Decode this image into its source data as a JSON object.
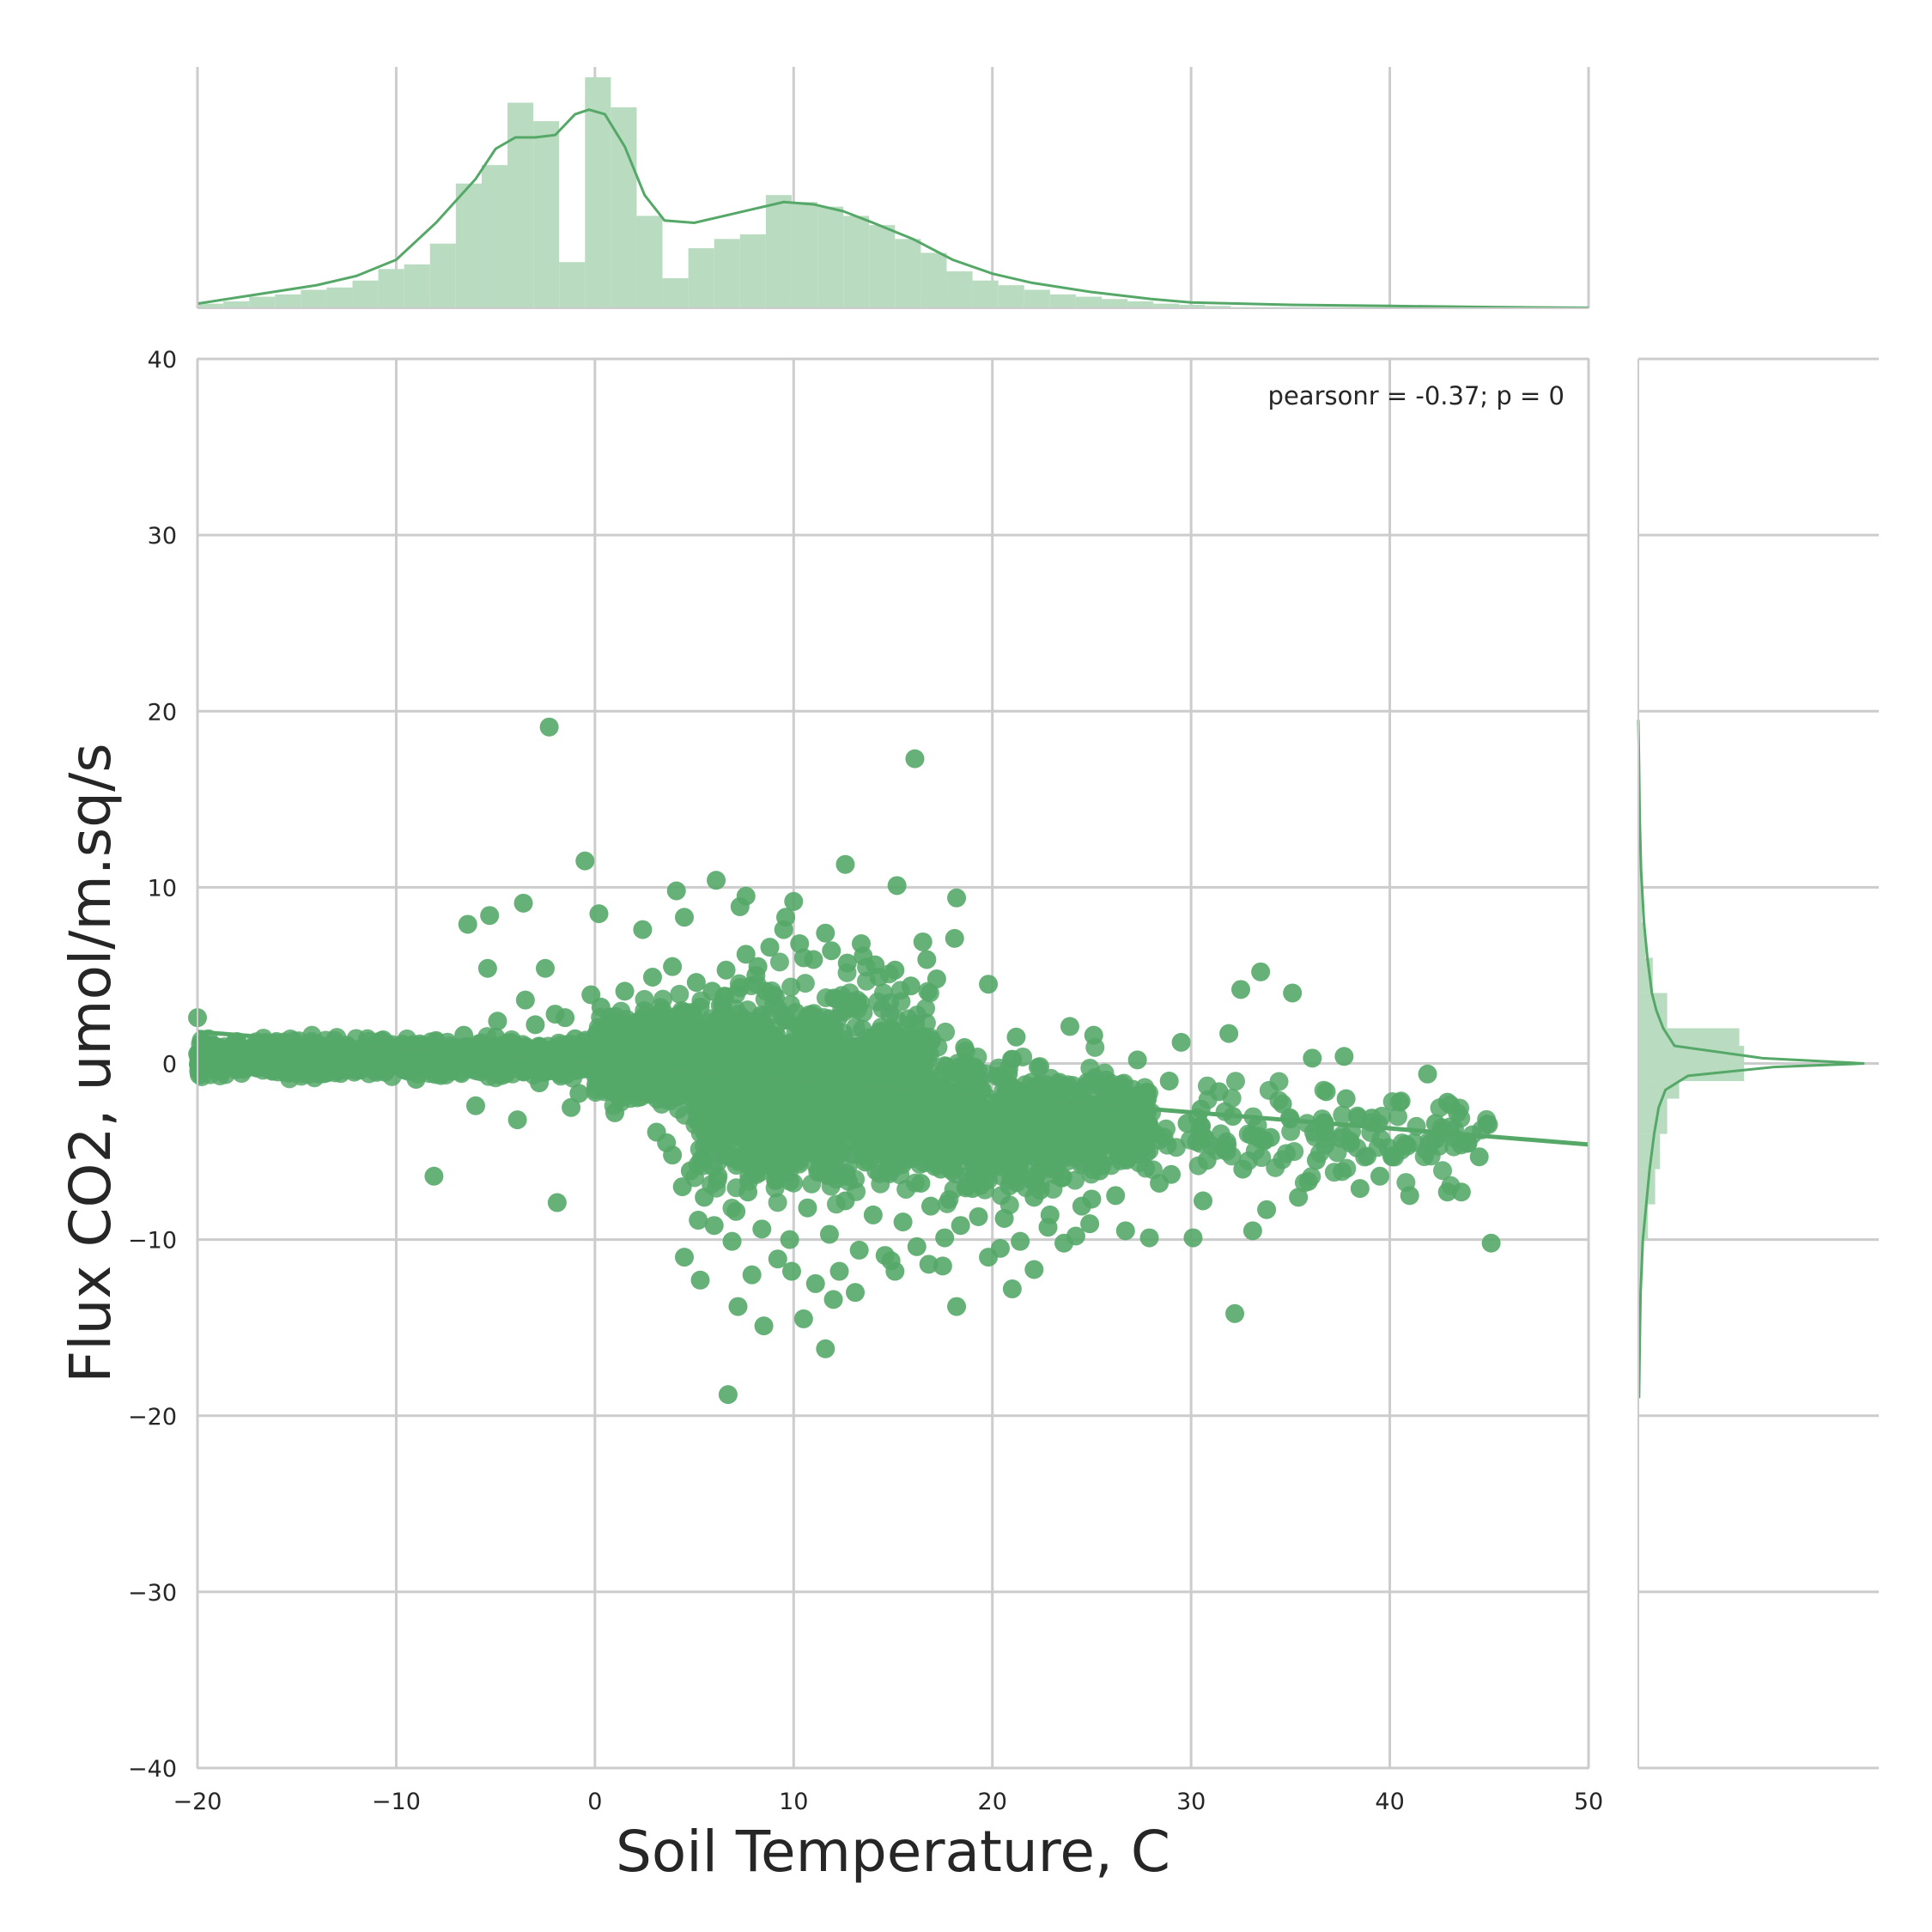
{
  "chart_data": {
    "type": "scatter",
    "kind": "joint-plot",
    "xlabel": "Soil Temperature, C",
    "ylabel": "Flux CO2, umol/m.sq/s",
    "annotation": "pearsonr = -0.37; p = 0",
    "xlim": [
      -20,
      50
    ],
    "ylim": [
      -40,
      40
    ],
    "x_ticks": [
      -20,
      -10,
      0,
      10,
      20,
      30,
      40,
      50
    ],
    "y_ticks": [
      -40,
      -30,
      -20,
      -10,
      0,
      10,
      20,
      30,
      40
    ],
    "x_tick_labels": [
      "−20",
      "−10",
      "0",
      "10",
      "20",
      "30",
      "40",
      "50"
    ],
    "y_tick_labels": [
      "−40",
      "−30",
      "−20",
      "−10",
      "0",
      "10",
      "20",
      "30",
      "40"
    ],
    "grid": true,
    "color": "#55a868",
    "hist_color": "#b9dcc1",
    "regression_line": {
      "x": [
        -20,
        50
      ],
      "y": [
        1.8,
        -4.6
      ]
    },
    "points": [
      [
        -2.3,
        19.1
      ],
      [
        16.1,
        17.3
      ],
      [
        -0.5,
        11.5
      ],
      [
        12.6,
        11.3
      ],
      [
        6.1,
        10.4
      ],
      [
        15.2,
        10.1
      ],
      [
        4.1,
        9.8
      ],
      [
        18.2,
        9.4
      ],
      [
        7.6,
        9.5
      ],
      [
        10.0,
        9.2
      ],
      [
        -3.6,
        9.1
      ],
      [
        7.3,
        8.9
      ],
      [
        -5.3,
        8.4
      ],
      [
        0.2,
        8.5
      ],
      [
        -6.4,
        7.9
      ],
      [
        4.5,
        8.3
      ],
      [
        9.6,
        8.3
      ],
      [
        11.6,
        7.4
      ],
      [
        2.4,
        7.6
      ],
      [
        13.4,
        6.8
      ],
      [
        16.5,
        6.9
      ],
      [
        18.1,
        7.1
      ],
      [
        7.6,
        6.2
      ],
      [
        3.9,
        5.5
      ],
      [
        -5.4,
        5.4
      ],
      [
        -2.5,
        5.4
      ],
      [
        19.8,
        4.5
      ],
      [
        33.5,
        5.2
      ],
      [
        32.5,
        4.2
      ],
      [
        35.1,
        4.0
      ],
      [
        -20.0,
        2.6
      ],
      [
        31.9,
        1.7
      ],
      [
        29.5,
        1.2
      ],
      [
        37.7,
        0.4
      ],
      [
        36.1,
        0.3
      ],
      [
        41.9,
        -0.6
      ],
      [
        -8.1,
        -6.4
      ],
      [
        -1.9,
        -7.9
      ],
      [
        4.5,
        -11.0
      ],
      [
        5.3,
        -12.3
      ],
      [
        7.9,
        -12.0
      ],
      [
        7.2,
        -13.8
      ],
      [
        8.5,
        -14.9
      ],
      [
        10.5,
        -14.5
      ],
      [
        11.6,
        -16.2
      ],
      [
        12.0,
        -13.4
      ],
      [
        6.7,
        -18.8
      ],
      [
        18.2,
        -13.8
      ],
      [
        21.0,
        -12.8
      ],
      [
        22.1,
        -11.7
      ],
      [
        32.2,
        -14.2
      ],
      [
        30.1,
        -9.9
      ],
      [
        33.1,
        -9.5
      ],
      [
        35.4,
        -7.6
      ],
      [
        38.5,
        -7.1
      ],
      [
        41.0,
        -7.5
      ],
      [
        42.9,
        -7.3
      ],
      [
        43.6,
        -7.3
      ],
      [
        44.5,
        -5.3
      ],
      [
        45.1,
        -10.2
      ],
      [
        40.8,
        -4.6
      ],
      [
        42.3,
        -3.4
      ],
      [
        43.4,
        -2.8
      ],
      [
        42.9,
        -2.2
      ],
      [
        39.5,
        -6.4
      ],
      [
        26.7,
        -9.5
      ],
      [
        27.9,
        -9.9
      ],
      [
        24.9,
        -9.1
      ],
      [
        23.6,
        -10.2
      ],
      [
        16.8,
        -11.4
      ],
      [
        15.1,
        -11.8
      ],
      [
        13.1,
        -13.0
      ],
      [
        9.2,
        -11.1
      ],
      [
        6.0,
        -9.2
      ],
      [
        3.9,
        -5.2
      ],
      [
        -1.2,
        -2.5
      ],
      [
        -3.9,
        -3.2
      ],
      [
        -6.0,
        -2.4
      ],
      [
        -9.0,
        -0.9
      ],
      [
        -12.0,
        -0.4
      ],
      [
        -16.0,
        -0.1
      ],
      [
        -18.0,
        0.2
      ],
      [
        -14.0,
        0.4
      ],
      [
        -10.0,
        0.6
      ],
      [
        -7.0,
        0.9
      ],
      [
        -5.0,
        1.5
      ],
      [
        -3.0,
        2.2
      ],
      [
        -1.5,
        2.6
      ],
      [
        0.3,
        3.2
      ],
      [
        1.5,
        4.1
      ],
      [
        2.9,
        4.9
      ],
      [
        5.1,
        4.6
      ],
      [
        8.2,
        5.5
      ],
      [
        10.5,
        6.0
      ],
      [
        14.1,
        5.6
      ],
      [
        17.2,
        4.8
      ],
      [
        21.2,
        1.5
      ],
      [
        23.9,
        2.1
      ],
      [
        25.1,
        1.6
      ],
      [
        27.3,
        0.2
      ],
      [
        28.9,
        -1.0
      ],
      [
        30.5,
        -2.6
      ],
      [
        32.1,
        -3.0
      ],
      [
        34.0,
        -4.2
      ],
      [
        36.3,
        -5.5
      ],
      [
        37.8,
        -2.0
      ],
      [
        39.1,
        -3.1
      ],
      [
        40.5,
        -2.2
      ],
      [
        26.2,
        -7.5
      ],
      [
        28.4,
        -6.8
      ],
      [
        30.8,
        -5.5
      ],
      [
        24.5,
        -8.1
      ],
      [
        22.8,
        -9.3
      ],
      [
        20.4,
        -10.5
      ],
      [
        19.3,
        -8.7
      ],
      [
        17.6,
        -9.9
      ],
      [
        14.6,
        -10.9
      ],
      [
        12.3,
        -11.8
      ],
      [
        9.8,
        -10.0
      ],
      [
        7.1,
        -8.4
      ],
      [
        5.5,
        -7.6
      ],
      [
        4.8,
        -6.1
      ],
      [
        3.1,
        -3.9
      ],
      [
        1.0,
        -2.8
      ],
      [
        -0.8,
        -1.7
      ],
      [
        -2.8,
        -1.1
      ],
      [
        -4.5,
        -0.6
      ],
      [
        -7.5,
        -0.3
      ],
      [
        -11.2,
        -0.2
      ],
      [
        -13.8,
        0.0
      ],
      [
        -17.3,
        -0.2
      ],
      [
        -19.5,
        0.4
      ],
      [
        -19.0,
        -0.3
      ],
      [
        -18.6,
        0.1
      ],
      [
        -17.7,
        0.5
      ],
      [
        -16.8,
        0.3
      ],
      [
        -15.5,
        0.2
      ],
      [
        -14.6,
        0.1
      ],
      [
        -13.2,
        0.6
      ],
      [
        -12.5,
        0.9
      ],
      [
        -11.6,
        0.2
      ],
      [
        -10.8,
        0.8
      ],
      [
        -9.7,
        1.1
      ],
      [
        -8.6,
        0.5
      ],
      [
        -8.0,
        1.3
      ],
      [
        -7.2,
        0.2
      ],
      [
        -6.6,
        1.6
      ],
      [
        -5.8,
        0.8
      ],
      [
        -4.9,
        2.4
      ],
      [
        -4.2,
        1.2
      ],
      [
        -3.5,
        3.6
      ],
      [
        -2.7,
        0.5
      ],
      [
        -2.0,
        2.8
      ],
      [
        -1.0,
        1.4
      ],
      [
        -0.2,
        3.9
      ],
      [
        0.6,
        0.8
      ],
      [
        1.3,
        2.1
      ],
      [
        2.0,
        -0.6
      ],
      [
        2.6,
        1.3
      ],
      [
        3.4,
        3.0
      ],
      [
        4.2,
        0.6
      ],
      [
        5.0,
        2.4
      ],
      [
        5.8,
        -1.3
      ],
      [
        6.5,
        3.8
      ],
      [
        7.0,
        0.2
      ],
      [
        7.8,
        -2.9
      ],
      [
        8.6,
        4.1
      ],
      [
        9.3,
        -0.8
      ],
      [
        10.1,
        2.9
      ],
      [
        10.9,
        -4.2
      ],
      [
        11.4,
        1.1
      ],
      [
        12.1,
        -2.1
      ],
      [
        12.9,
        3.4
      ],
      [
        13.6,
        -5.6
      ],
      [
        14.4,
        0.7
      ],
      [
        15.0,
        -3.5
      ],
      [
        15.8,
        2.2
      ],
      [
        16.4,
        -6.8
      ],
      [
        17.1,
        -1.2
      ],
      [
        17.9,
        -4.4
      ],
      [
        18.6,
        0.9
      ],
      [
        19.4,
        -2.7
      ],
      [
        20.1,
        -5.9
      ],
      [
        20.8,
        -0.6
      ],
      [
        21.6,
        -3.8
      ],
      [
        22.4,
        -7.2
      ],
      [
        23.1,
        -1.8
      ],
      [
        23.8,
        -4.9
      ],
      [
        24.6,
        -2.4
      ],
      [
        25.4,
        -6.1
      ],
      [
        26.0,
        -3.2
      ],
      [
        26.8,
        -5.4
      ],
      [
        27.5,
        -2.1
      ],
      [
        28.2,
        -4.0
      ],
      [
        29.0,
        -6.3
      ],
      [
        29.8,
        -3.4
      ],
      [
        30.6,
        -7.8
      ],
      [
        31.4,
        -1.6
      ],
      [
        32.6,
        -6.0
      ],
      [
        33.8,
        -8.3
      ],
      [
        34.6,
        -2.3
      ],
      [
        35.9,
        -6.7
      ],
      [
        36.8,
        -1.6
      ],
      [
        38.0,
        -4.4
      ],
      [
        3.6,
        -4.5
      ],
      [
        4.4,
        -7.0
      ],
      [
        5.2,
        -8.9
      ],
      [
        6.2,
        -6.4
      ],
      [
        6.9,
        -10.1
      ],
      [
        7.7,
        -7.3
      ],
      [
        8.4,
        -9.4
      ],
      [
        9.1,
        -6.6
      ],
      [
        9.9,
        -11.8
      ],
      [
        10.7,
        -8.2
      ],
      [
        11.1,
        -12.5
      ],
      [
        11.8,
        -9.7
      ],
      [
        12.6,
        -7.8
      ],
      [
        13.3,
        -10.6
      ],
      [
        14.0,
        -8.6
      ],
      [
        14.9,
        -11.2
      ],
      [
        15.5,
        -9.0
      ],
      [
        16.2,
        -10.4
      ],
      [
        16.9,
        -8.1
      ],
      [
        17.5,
        -11.5
      ],
      [
        18.4,
        -9.2
      ],
      [
        19.0,
        -7.1
      ],
      [
        19.8,
        -11.0
      ],
      [
        20.6,
        -8.8
      ],
      [
        21.4,
        -10.1
      ],
      [
        22.1,
        -7.6
      ],
      [
        22.9,
        -8.6
      ],
      [
        23.5,
        -6.5
      ],
      [
        24.2,
        -9.8
      ],
      [
        25.0,
        -7.7
      ],
      [
        9.5,
        7.6
      ],
      [
        10.3,
        6.8
      ],
      [
        11.0,
        5.9
      ],
      [
        11.9,
        6.4
      ],
      [
        12.7,
        5.7
      ],
      [
        13.5,
        6.1
      ],
      [
        14.3,
        4.9
      ],
      [
        15.1,
        5.3
      ],
      [
        15.9,
        4.4
      ],
      [
        16.7,
        5.9
      ],
      [
        8.8,
        6.6
      ],
      [
        8.1,
        5.0
      ],
      [
        7.3,
        4.3
      ],
      [
        6.6,
        5.3
      ],
      [
        5.9,
        4.1
      ],
      [
        5.3,
        3.2
      ],
      [
        4.6,
        2.6
      ],
      [
        3.8,
        1.9
      ],
      [
        12.2,
        0.0
      ],
      [
        11.5,
        -1.5
      ],
      [
        10.6,
        1.8
      ],
      [
        9.7,
        -3.2
      ],
      [
        13.8,
        -1.9
      ],
      [
        14.7,
        1.5
      ],
      [
        15.6,
        -4.9
      ],
      [
        16.6,
        0.3
      ],
      [
        17.4,
        -6.0
      ],
      [
        18.2,
        -2.4
      ],
      [
        19.1,
        -0.2
      ],
      [
        20.0,
        -3.2
      ],
      [
        8.9,
        0.8
      ],
      [
        8.0,
        -4.5
      ],
      [
        7.2,
        -1.8
      ],
      [
        6.3,
        1.2
      ],
      [
        5.6,
        -3.4
      ],
      [
        4.9,
        0.1
      ],
      [
        4.0,
        -1.5
      ],
      [
        3.2,
        0.7
      ],
      [
        2.3,
        -1.9
      ],
      [
        1.6,
        0.3
      ],
      [
        0.9,
        -0.9
      ],
      [
        0.1,
        1.0
      ]
    ],
    "cloud": {
      "description_free": true,
      "density_regions": [
        {
          "x_range": [
            -20,
            0
          ],
          "center_y": 0.3,
          "spread": 0.8,
          "weight": 0.3
        },
        {
          "x_range": [
            0,
            5
          ],
          "center_y": 0.5,
          "spread": 2.0,
          "weight": 0.15
        },
        {
          "x_range": [
            5,
            17
          ],
          "center_y": -1.5,
          "spread": 3.5,
          "weight": 0.35
        },
        {
          "x_range": [
            17,
            28
          ],
          "center_y": -3.5,
          "spread": 2.6,
          "weight": 0.17
        },
        {
          "x_range": [
            28,
            45
          ],
          "center_y": -4.0,
          "spread": 2.2,
          "weight": 0.03
        }
      ]
    },
    "x_hist": {
      "bin_edges": [
        -20,
        -18.7,
        -17.4,
        -16.1,
        -14.8,
        -13.5,
        -12.2,
        -10.9,
        -9.6,
        -8.3,
        -7,
        -5.7,
        -4.4,
        -3.1,
        -1.8,
        -0.5,
        0.8,
        2.1,
        3.4,
        4.7,
        6,
        7.3,
        8.6,
        9.9,
        11.2,
        12.5,
        13.8,
        15.1,
        16.4,
        17.7,
        19,
        20.3,
        21.6,
        22.9,
        24.2,
        25.5,
        26.8,
        28.1,
        29.4,
        30.7,
        32,
        50
      ],
      "counts": [
        0.02,
        0.03,
        0.05,
        0.06,
        0.08,
        0.09,
        0.12,
        0.17,
        0.19,
        0.28,
        0.54,
        0.62,
        0.89,
        0.81,
        0.2,
        1.0,
        0.87,
        0.4,
        0.13,
        0.26,
        0.3,
        0.32,
        0.49,
        0.46,
        0.44,
        0.4,
        0.36,
        0.3,
        0.24,
        0.16,
        0.12,
        0.1,
        0.08,
        0.06,
        0.05,
        0.04,
        0.03,
        0.02,
        0.015,
        0.01,
        0.005
      ],
      "kde_x": [
        -20,
        -17,
        -14,
        -12,
        -10,
        -8,
        -6,
        -5,
        -4,
        -3,
        -2,
        -1,
        -0.3,
        0.5,
        1.5,
        2.5,
        3.5,
        5,
        6.5,
        8,
        9.5,
        11,
        12.5,
        14,
        16,
        18,
        20,
        22,
        25,
        28,
        30,
        35,
        40,
        45,
        50
      ],
      "kde_y": [
        0.02,
        0.06,
        0.1,
        0.14,
        0.21,
        0.37,
        0.56,
        0.69,
        0.74,
        0.74,
        0.75,
        0.84,
        0.86,
        0.84,
        0.7,
        0.49,
        0.38,
        0.37,
        0.4,
        0.43,
        0.46,
        0.45,
        0.42,
        0.37,
        0.3,
        0.21,
        0.15,
        0.11,
        0.07,
        0.04,
        0.025,
        0.015,
        0.01,
        0.005,
        0.002
      ]
    },
    "y_hist": {
      "bin_edges": [
        -20,
        -18,
        -16,
        -14,
        -12,
        -10,
        -8,
        -6,
        -4,
        -2,
        -1,
        0,
        1,
        2,
        4,
        6,
        8,
        10,
        12,
        14,
        16,
        18,
        20
      ],
      "counts": [
        0.0,
        0.0,
        0.005,
        0.01,
        0.02,
        0.04,
        0.07,
        0.09,
        0.12,
        0.17,
        0.44,
        0.44,
        0.42,
        0.12,
        0.06,
        0.03,
        0.015,
        0.01,
        0.005,
        0.0,
        0.0,
        0.0
      ],
      "kde_y": [
        -19,
        -16,
        -13,
        -10,
        -8,
        -6,
        -4,
        -2.5,
        -1.5,
        -0.7,
        -0.2,
        0,
        0.3,
        1,
        2,
        3,
        4,
        6,
        8,
        11,
        14,
        17,
        19.5
      ],
      "kde_x": [
        0.003,
        0.006,
        0.01,
        0.02,
        0.035,
        0.05,
        0.07,
        0.09,
        0.12,
        0.22,
        0.6,
        1.0,
        0.55,
        0.16,
        0.11,
        0.08,
        0.06,
        0.04,
        0.025,
        0.012,
        0.006,
        0.003,
        0.0
      ]
    }
  }
}
